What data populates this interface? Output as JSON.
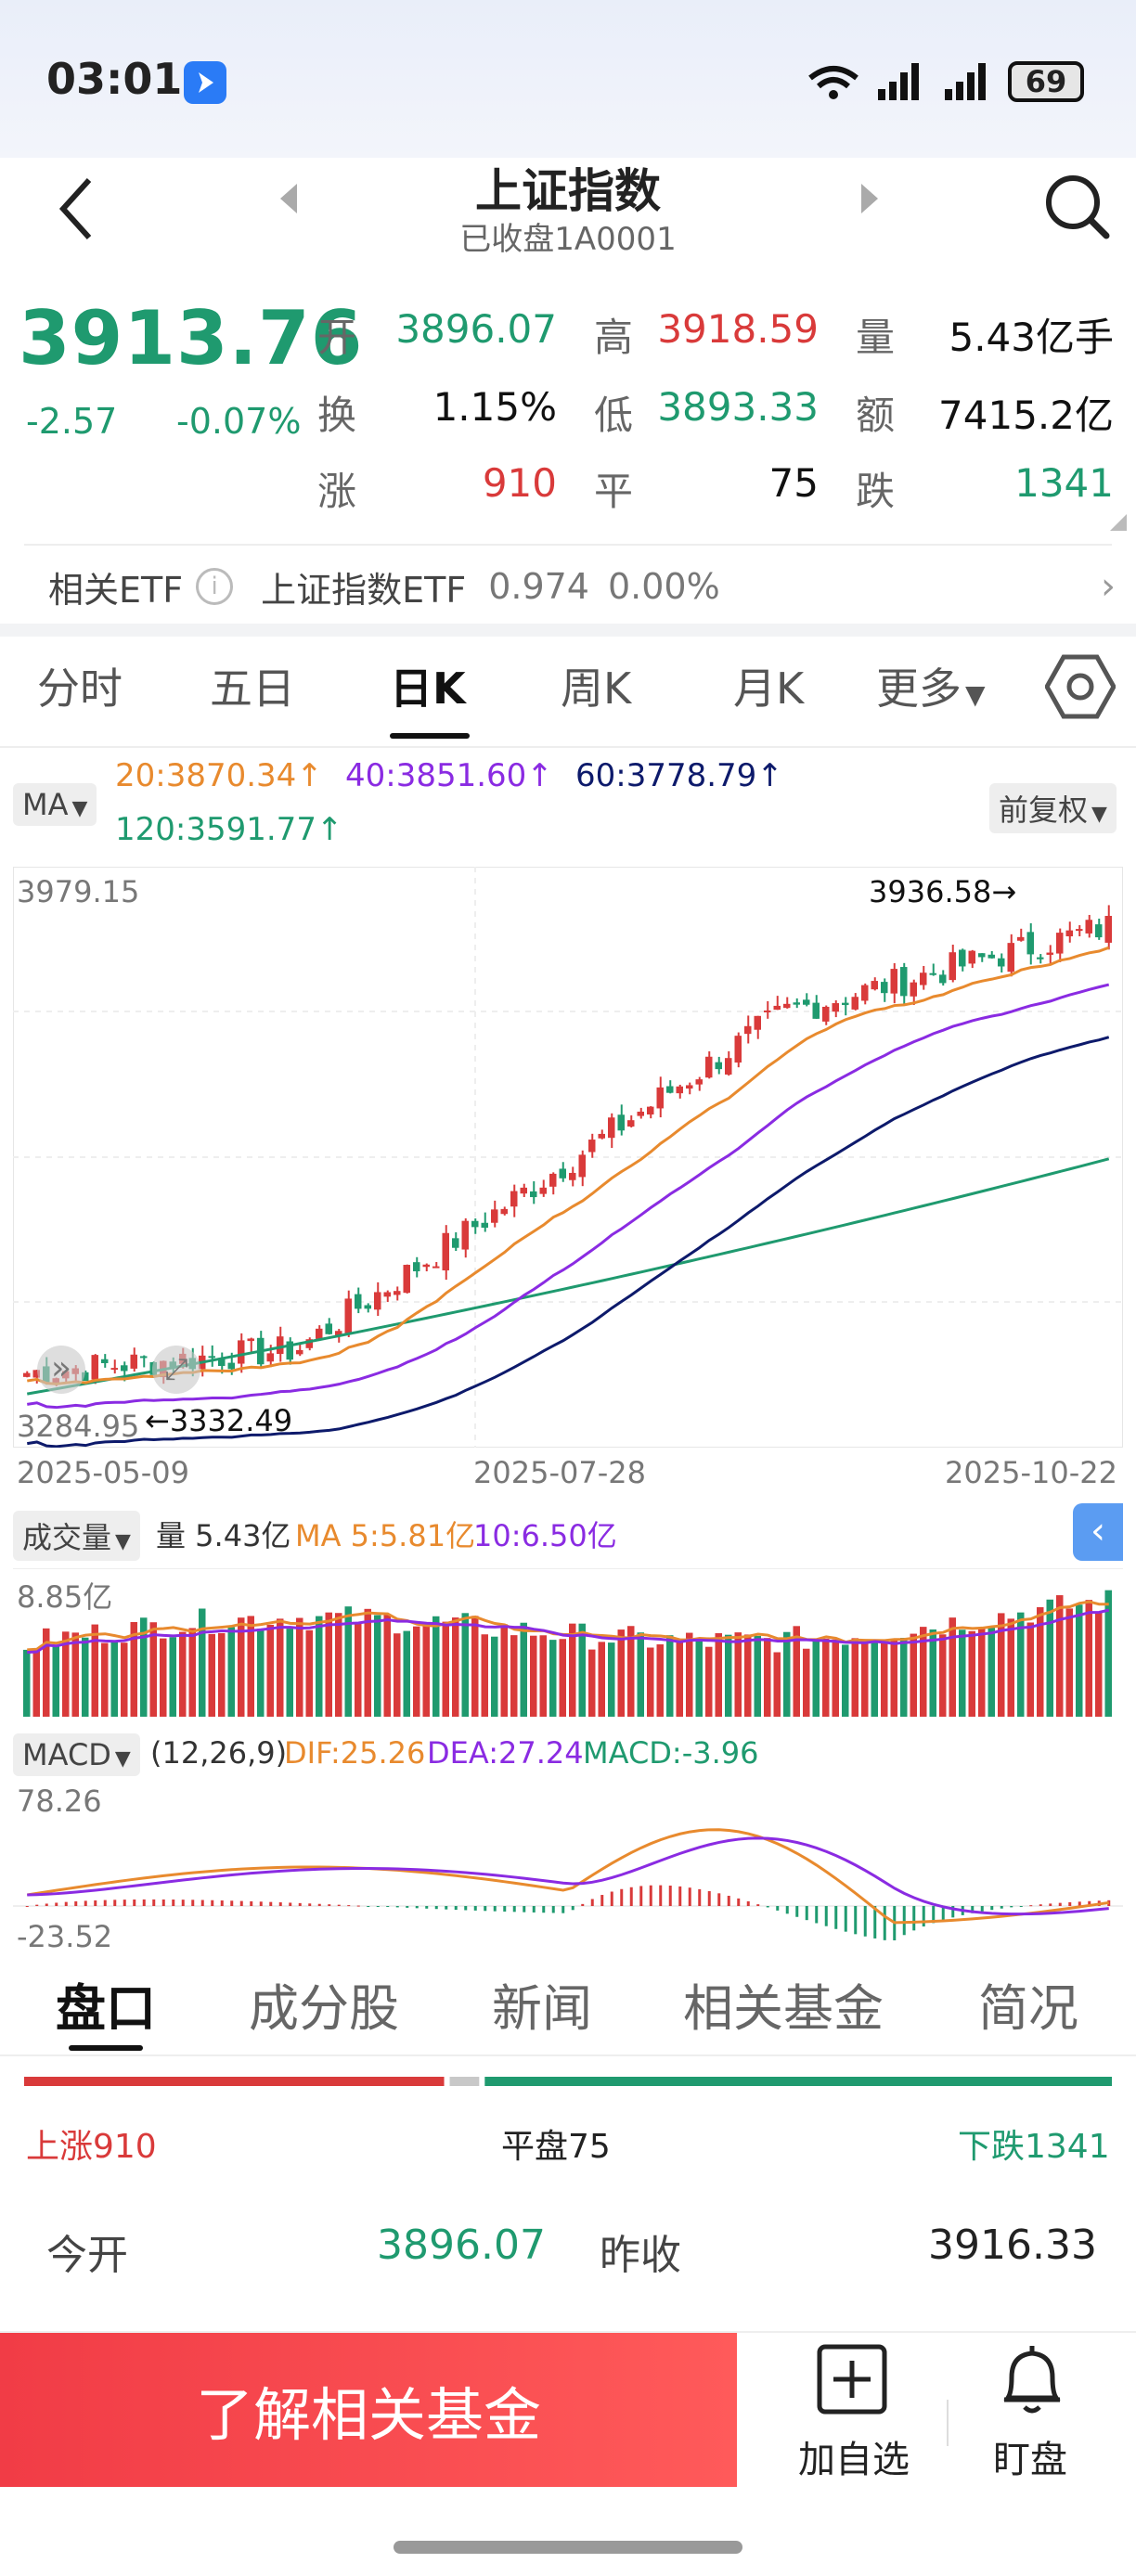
{
  "status_bar": {
    "time": "03:01",
    "battery": "69"
  },
  "header": {
    "title": "上证指数",
    "subtitle": "已收盘1A0001"
  },
  "quote": {
    "price": "3913.76",
    "change": "-2.57",
    "change_pct": "-0.07%",
    "fields": [
      {
        "label": "开",
        "value": "3896.07",
        "color": "green"
      },
      {
        "label": "高",
        "value": "3918.59",
        "color": "red"
      },
      {
        "label": "量",
        "value": "5.43亿手",
        "color": "dark"
      },
      {
        "label": "换",
        "value": "1.15%",
        "color": "dark"
      },
      {
        "label": "低",
        "value": "3893.33",
        "color": "green"
      },
      {
        "label": "额",
        "value": "7415.2亿",
        "color": "dark"
      },
      {
        "label": "涨",
        "value": "910",
        "color": "red"
      },
      {
        "label": "平",
        "value": "75",
        "color": "dark"
      },
      {
        "label": "跌",
        "value": "1341",
        "color": "green"
      }
    ]
  },
  "etf": {
    "label": "相关ETF",
    "name": "上证指数ETF",
    "price": "0.974",
    "pct": "0.00%"
  },
  "chart_tabs": [
    "分时",
    "五日",
    "日K",
    "周K",
    "月K",
    "更多"
  ],
  "ma": {
    "selector": "MA",
    "adjust": "前复权",
    "ma20": "20:3870.34",
    "ma40": "40:3851.60",
    "ma60": "60:3778.79",
    "ma120": "120:3591.77",
    "arrow": "↑"
  },
  "kline": {
    "high_label": "3979.15",
    "low_label": "3284.95",
    "max_marker": "3936.58",
    "min_marker": "3332.49",
    "dates": [
      "2025-05-09",
      "2025-07-28",
      "2025-10-22"
    ]
  },
  "volume": {
    "selector": "成交量",
    "vol": "量 5.43亿",
    "ma5": "MA 5:5.81亿",
    "ma10": "10:6.50亿",
    "top_label": "8.85亿"
  },
  "macd": {
    "selector": "MACD",
    "params": "(12,26,9)",
    "dif": "DIF:25.26",
    "dea": "DEA:27.24",
    "macd": "MACD:-3.96",
    "top": "78.26",
    "bottom": "-23.52"
  },
  "bottom_tabs": [
    "盘口",
    "成分股",
    "新闻",
    "相关基金",
    "简况"
  ],
  "breadth": {
    "up": "上涨910",
    "flat": "平盘75",
    "down": "下跌1341",
    "up_count": 910,
    "flat_count": 75,
    "down_count": 1341
  },
  "detail": {
    "open_label": "今开",
    "open_value": "3896.07",
    "prev_label": "昨收",
    "prev_value": "3916.33"
  },
  "footer": {
    "cta": "了解相关基金",
    "add": "加自选",
    "watch": "盯盘"
  },
  "colors": {
    "up": "#d93a3a",
    "down": "#1f9a6f",
    "ma20": "#e88a2e",
    "ma40": "#8a2be2",
    "ma60": "#0d1a6b",
    "ma120": "#1f9a6f"
  }
}
